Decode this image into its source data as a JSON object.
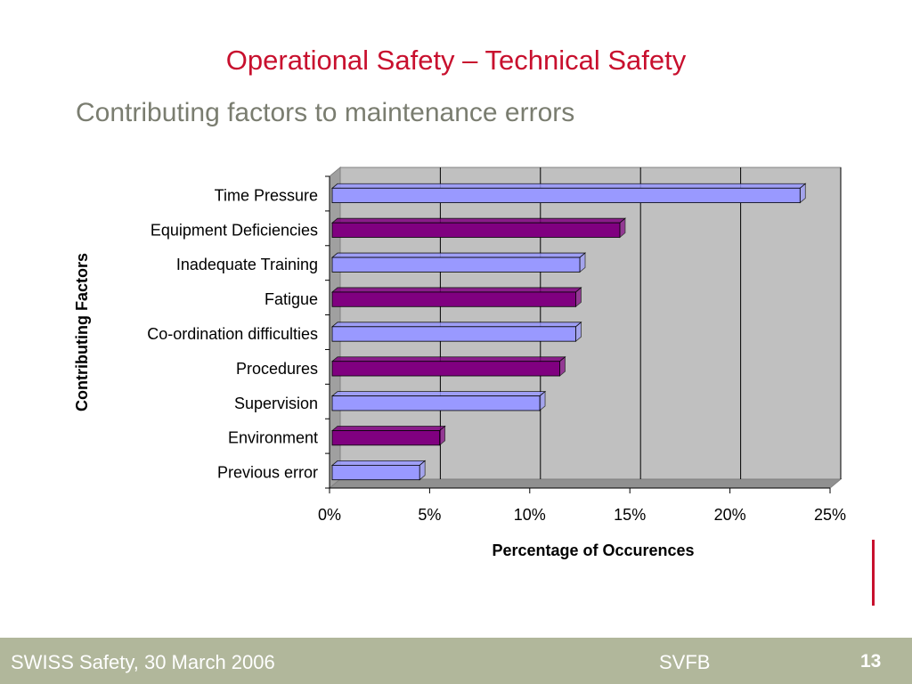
{
  "slide": {
    "title": "Operational Safety – Technical Safety",
    "subtitle": "Contributing factors to maintenance errors"
  },
  "footer": {
    "left": "SWISS Safety, 30 March 2006",
    "center": "SVFB",
    "page": "13"
  },
  "colors": {
    "title": "#c8102e",
    "subtitle": "#7a7d70",
    "bar_light": "#9999ff",
    "bar_dark": "#800080",
    "plot_bg": "#c0c0c0",
    "footer_bg": "#b1b79b"
  },
  "chart_data": {
    "type": "bar",
    "orientation": "horizontal",
    "style": "3d",
    "categories": [
      "Time Pressure",
      "Equipment Deficiencies",
      "Inadequate Training",
      "Fatigue",
      "Co-ordination difficulties",
      "Procedures",
      "Supervision",
      "Environment",
      "Previous error"
    ],
    "values": [
      23.5,
      14.5,
      12.5,
      12.3,
      12.3,
      11.5,
      10.5,
      5.5,
      4.5
    ],
    "bar_colors": [
      "#9999ff",
      "#800080",
      "#9999ff",
      "#800080",
      "#9999ff",
      "#800080",
      "#9999ff",
      "#800080",
      "#9999ff"
    ],
    "xlabel": "Percentage of Occurences",
    "ylabel": "Contributing Factors",
    "xlim": [
      0,
      25
    ],
    "xticks": [
      "0%",
      "5%",
      "10%",
      "15%",
      "20%",
      "25%"
    ],
    "grid": true,
    "legend": "none"
  }
}
